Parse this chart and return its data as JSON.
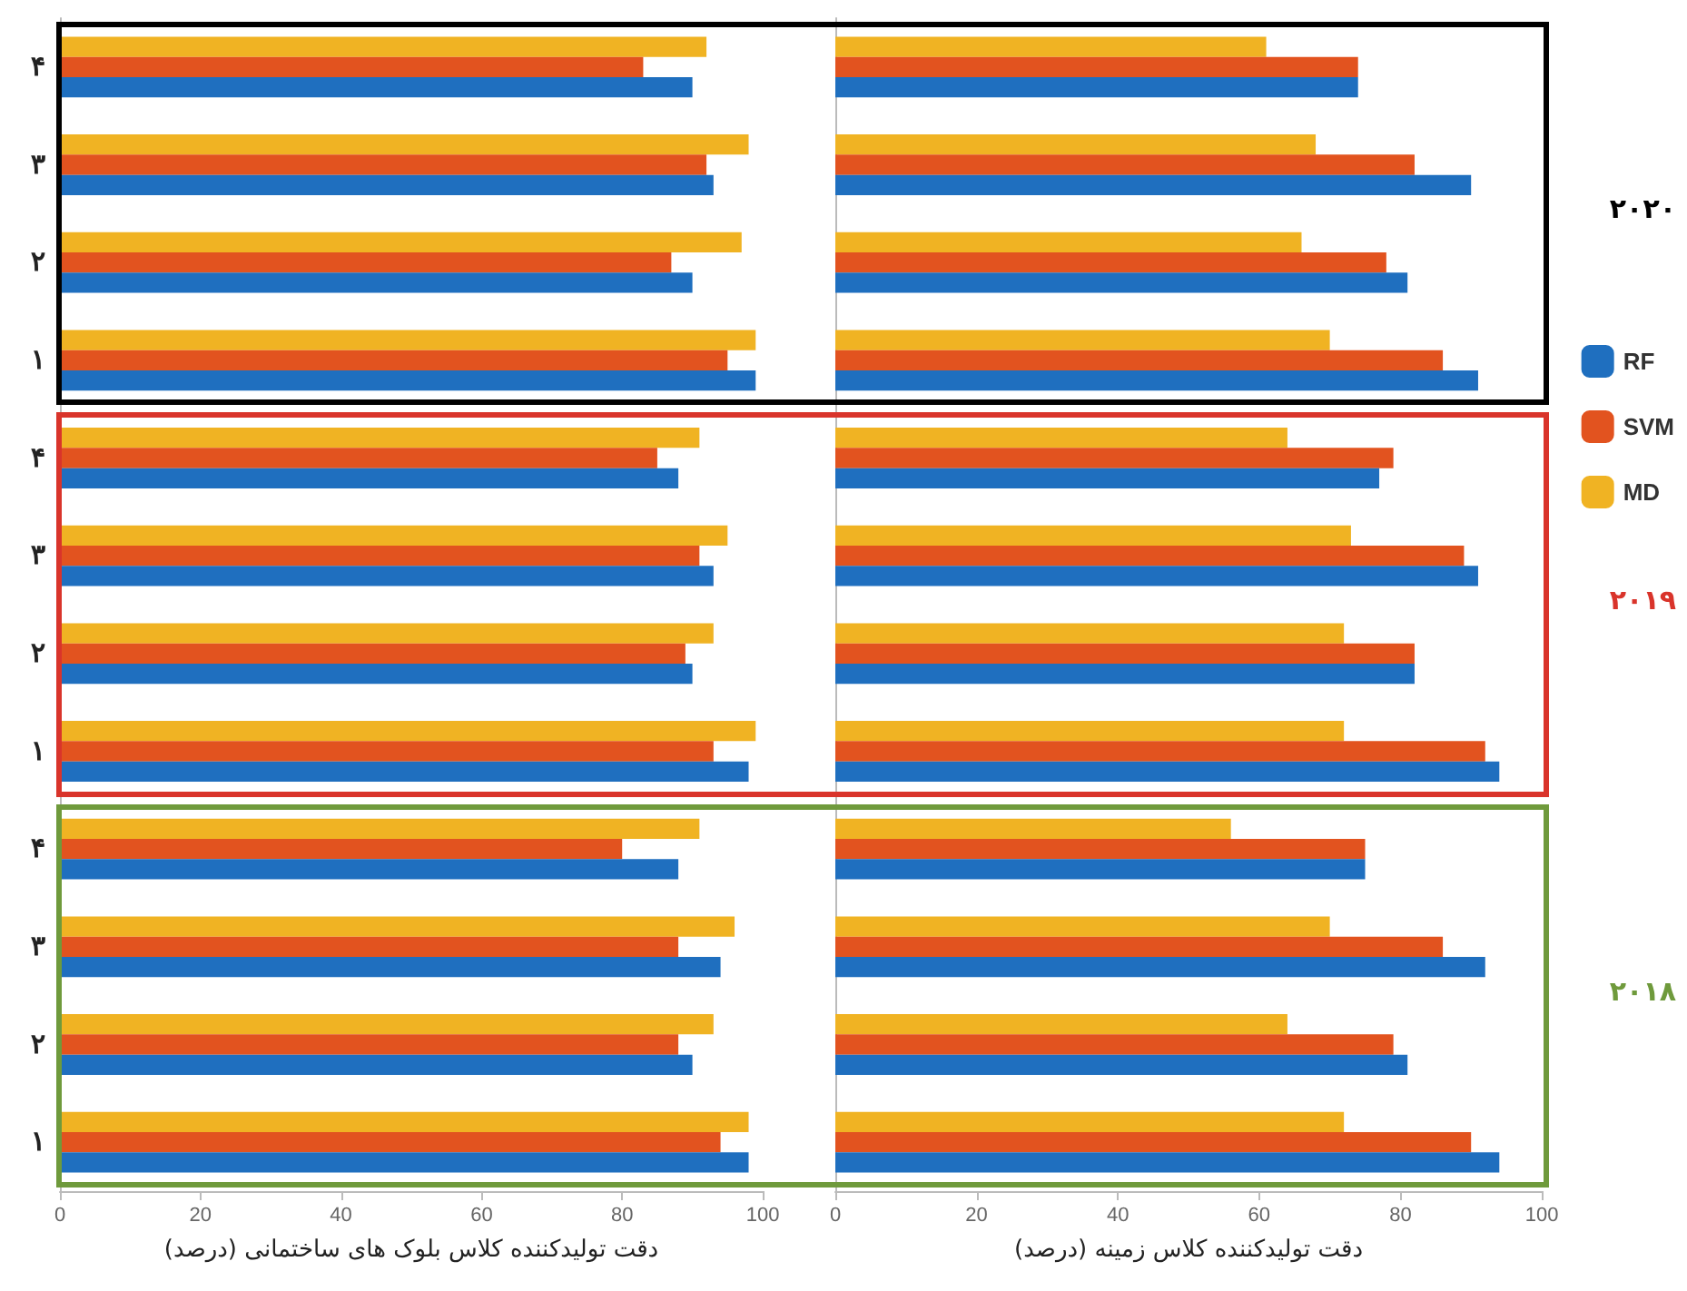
{
  "chart_data": [
    {
      "type": "bar",
      "orientation": "horizontal",
      "xlabel": "دقت تولیدکننده کلاس بلوک های ساختمانی (درصد)",
      "categories": [
        "۴",
        "۳",
        "۲",
        "۱",
        "۴",
        "۳",
        "۲",
        "۱",
        "۴",
        "۳",
        "۲",
        "۱"
      ],
      "xlim": [
        0,
        100
      ],
      "xticks": [
        0,
        20,
        40,
        60,
        80,
        100
      ],
      "legend": false,
      "series": [
        {
          "color": "#f0b323",
          "values": [
            92,
            98,
            97,
            99,
            91,
            95,
            93,
            99,
            91,
            96,
            93,
            98
          ]
        },
        {
          "color": "#e2531f",
          "values": [
            83,
            92,
            87,
            95,
            85,
            91,
            89,
            93,
            80,
            88,
            88,
            94
          ]
        },
        {
          "color": "#1f6fbf",
          "values": [
            90,
            93,
            90,
            99,
            88,
            93,
            90,
            98,
            88,
            94,
            90,
            98
          ]
        }
      ]
    },
    {
      "type": "bar",
      "orientation": "horizontal",
      "xlabel": "دقت تولیدکننده کلاس زمینه (درصد)",
      "categories": [
        "۴",
        "۳",
        "۲",
        "۱",
        "۴",
        "۳",
        "۲",
        "۱",
        "۴",
        "۳",
        "۲",
        "۱"
      ],
      "xlim": [
        0,
        100
      ],
      "xticks": [
        0,
        20,
        40,
        60,
        80,
        100
      ],
      "tick_labels": "x",
      "legend": "right",
      "annotations": [
        "۲۰۲۰",
        "۲۰۱۹",
        "۲۰۱۸"
      ],
      "series": [
        {
          "name": "MD",
          "color": "#f0b323",
          "values": [
            61,
            68,
            66,
            70,
            64,
            73,
            72,
            72,
            56,
            70,
            64,
            72
          ]
        },
        {
          "name": "SVM",
          "color": "#e2531f",
          "values": [
            74,
            82,
            78,
            86,
            79,
            89,
            82,
            92,
            75,
            86,
            79,
            90
          ]
        },
        {
          "name": "RF",
          "color": "#1f6fbf",
          "values": [
            74,
            90,
            81,
            91,
            77,
            91,
            82,
            94,
            75,
            92,
            81,
            94
          ]
        }
      ]
    }
  ]
}
